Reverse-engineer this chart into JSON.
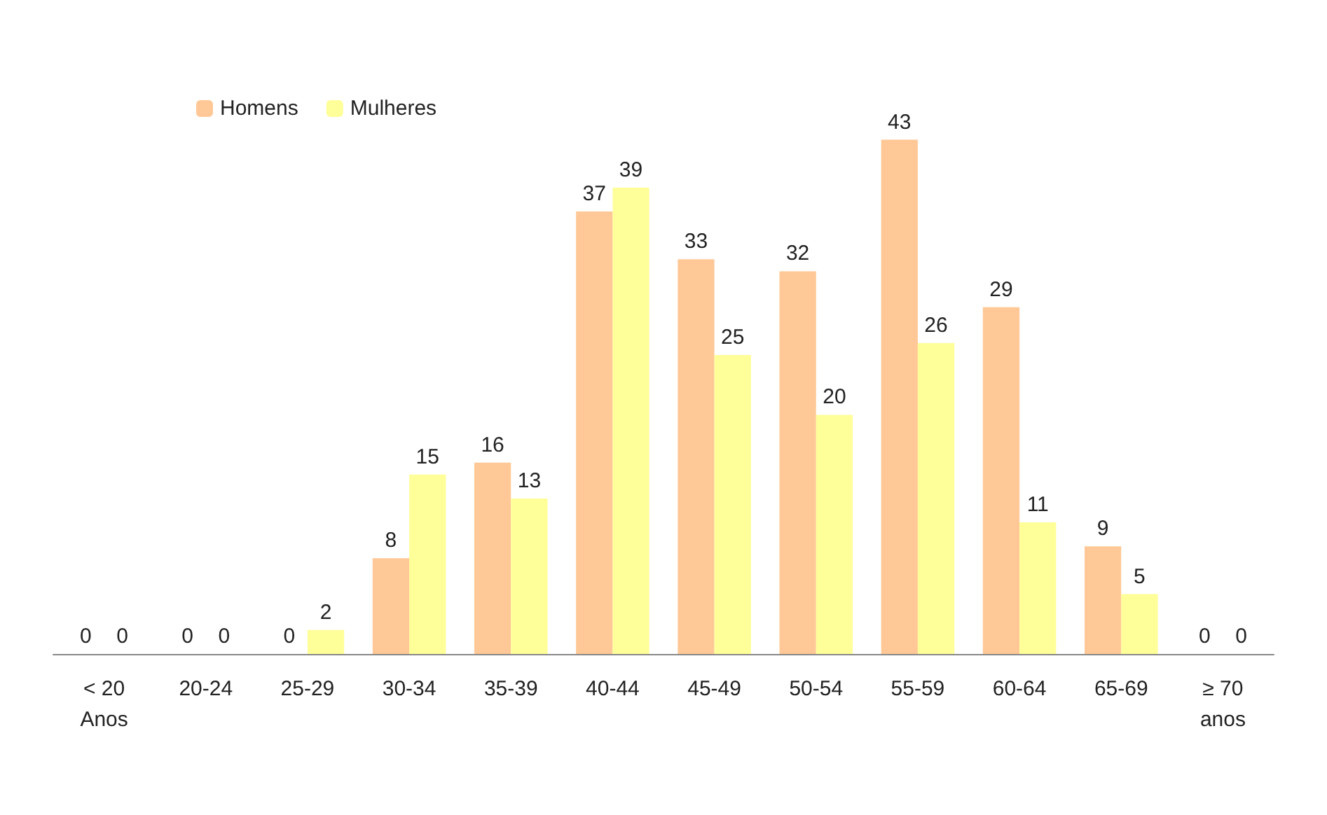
{
  "chart_data": {
    "type": "bar",
    "categories": [
      "< 20\nAnos",
      "20-24",
      "25-29",
      "30-34",
      "35-39",
      "40-44",
      "45-49",
      "50-54",
      "55-59",
      "60-64",
      "65-69",
      "≥ 70\nanos"
    ],
    "series": [
      {
        "name": "Homens",
        "color": "#ffc896",
        "values": [
          0,
          0,
          0,
          8,
          16,
          37,
          33,
          32,
          43,
          29,
          9,
          0
        ]
      },
      {
        "name": "Mulheres",
        "color": "#ffff99",
        "values": [
          0,
          0,
          2,
          15,
          13,
          39,
          25,
          20,
          26,
          11,
          5,
          0
        ]
      }
    ],
    "data_labels": true,
    "legend": "top left",
    "grid": false
  }
}
